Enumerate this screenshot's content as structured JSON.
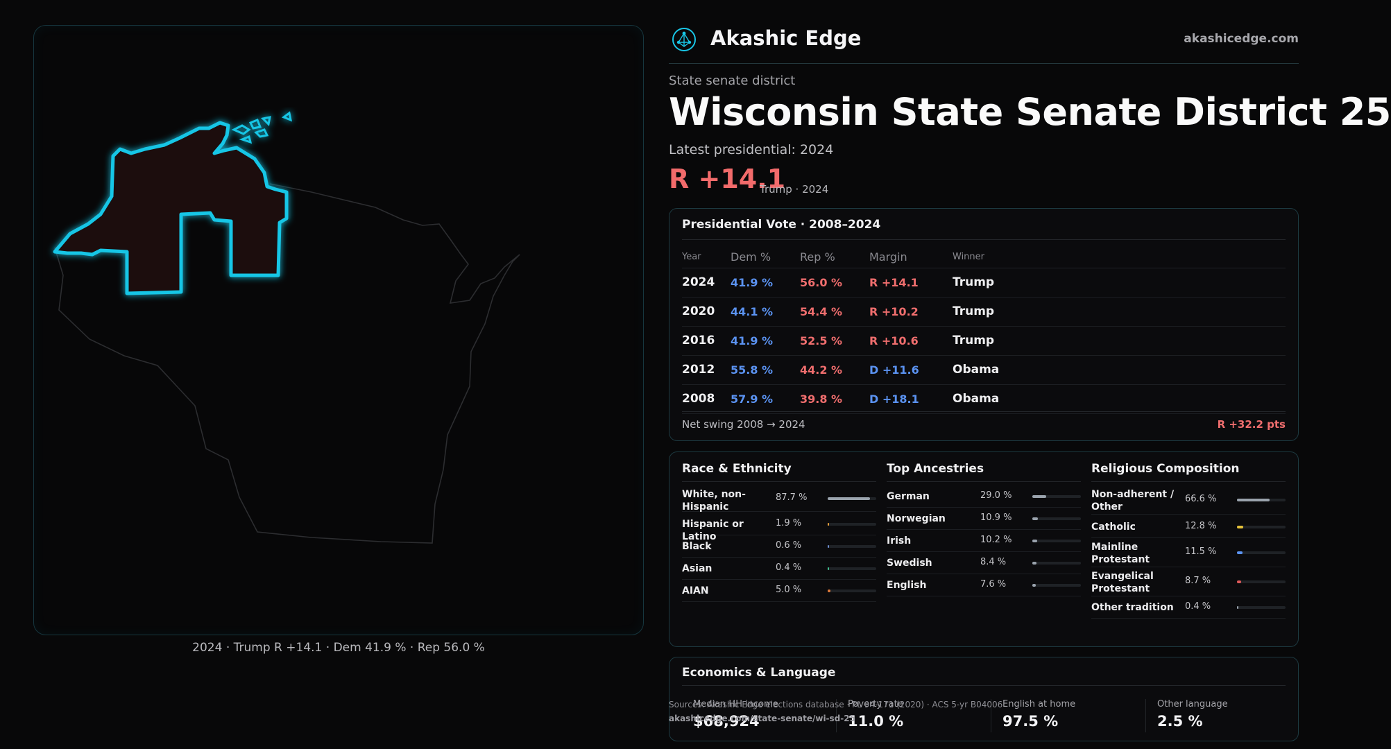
{
  "brand": {
    "name": "Akashic Edge",
    "url": "akashicedge.com",
    "logo_icon": "constellation-logo-icon",
    "accent": "#19c6e6"
  },
  "header": {
    "kicker": "State senate district",
    "title": "Wisconsin State Senate District 25",
    "latest_label": "Latest presidential: 2024",
    "margin": "R +14.1",
    "margin_note": "Trump · 2024"
  },
  "map": {
    "caption": "2024 · Trump R +14.1 · Dem 41.9 % · Rep 56.0 %",
    "district_color": "#19c6e6",
    "district_fill": "#1a0f11"
  },
  "presidential": {
    "title": "Presidential Vote · 2008–2024",
    "columns": [
      "Year",
      "Dem %",
      "Rep %",
      "Margin",
      "Winner"
    ],
    "rows": [
      {
        "year": "2024",
        "dem": "41.9 %",
        "rep": "56.0 %",
        "margin": "R +14.1",
        "party": "R",
        "winner": "Trump"
      },
      {
        "year": "2020",
        "dem": "44.1 %",
        "rep": "54.4 %",
        "margin": "R +10.2",
        "party": "R",
        "winner": "Trump"
      },
      {
        "year": "2016",
        "dem": "41.9 %",
        "rep": "52.5 %",
        "margin": "R +10.6",
        "party": "R",
        "winner": "Trump"
      },
      {
        "year": "2012",
        "dem": "55.8 %",
        "rep": "44.2 %",
        "margin": "D +11.6",
        "party": "D",
        "winner": "Obama"
      },
      {
        "year": "2008",
        "dem": "57.9 %",
        "rep": "39.8 %",
        "margin": "D +18.1",
        "party": "D",
        "winner": "Obama"
      }
    ],
    "swing_label": "Net swing 2008 → 2024",
    "swing_value": "R +32.2 pts"
  },
  "race": {
    "title": "Race & Ethnicity",
    "items": [
      {
        "label": "White, non-Hispanic",
        "value": "87.7 %",
        "pct": 87.7,
        "color": "#9aa3ad"
      },
      {
        "label": "Hispanic or Latino",
        "value": "1.9 %",
        "pct": 1.9,
        "color": "#e8a03a"
      },
      {
        "label": "Black",
        "value": "0.6 %",
        "pct": 0.6,
        "color": "#6c8ccf"
      },
      {
        "label": "Asian",
        "value": "0.4 %",
        "pct": 0.4,
        "color": "#3fbf8f"
      },
      {
        "label": "AIAN",
        "value": "5.0 %",
        "pct": 5.0,
        "color": "#e07a3a"
      }
    ]
  },
  "ancestry": {
    "title": "Top Ancestries",
    "items": [
      {
        "label": "German",
        "value": "29.0 %",
        "pct": 29.0,
        "color": "#9aa3ad"
      },
      {
        "label": "Norwegian",
        "value": "10.9 %",
        "pct": 10.9,
        "color": "#9aa3ad"
      },
      {
        "label": "Irish",
        "value": "10.2 %",
        "pct": 10.2,
        "color": "#9aa3ad"
      },
      {
        "label": "Swedish",
        "value": "8.4 %",
        "pct": 8.4,
        "color": "#9aa3ad"
      },
      {
        "label": "English",
        "value": "7.6 %",
        "pct": 7.6,
        "color": "#9aa3ad"
      }
    ]
  },
  "religion": {
    "title": "Religious Composition",
    "items": [
      {
        "label": "Non-adherent / Other",
        "value": "66.6 %",
        "pct": 66.6,
        "color": "#9aa3ad"
      },
      {
        "label": "Catholic",
        "value": "12.8 %",
        "pct": 12.8,
        "color": "#e6c23a"
      },
      {
        "label": "Mainline Protestant",
        "value": "11.5 %",
        "pct": 11.5,
        "color": "#5b93f2"
      },
      {
        "label": "Evangelical Protestant",
        "value": "8.7 %",
        "pct": 8.7,
        "color": "#e05a5a"
      },
      {
        "label": "Other tradition",
        "value": "0.4 %",
        "pct": 0.4,
        "color": "#9aa3ad"
      }
    ]
  },
  "economics": {
    "title": "Economics & Language",
    "stats": [
      {
        "label": "Median HH income",
        "value": "$68,924"
      },
      {
        "label": "Poverty rate",
        "value": "11.0 %"
      },
      {
        "label": "English at home",
        "value": "97.5 %"
      },
      {
        "label": "Other language",
        "value": "2.5 %"
      }
    ]
  },
  "source": {
    "line1": "Sources: Akashic Edge elections database · PL 94-171 (2020) · ACS 5-yr B04006",
    "line2": "akashicedge.com/state-senate/wi-sd-25"
  }
}
